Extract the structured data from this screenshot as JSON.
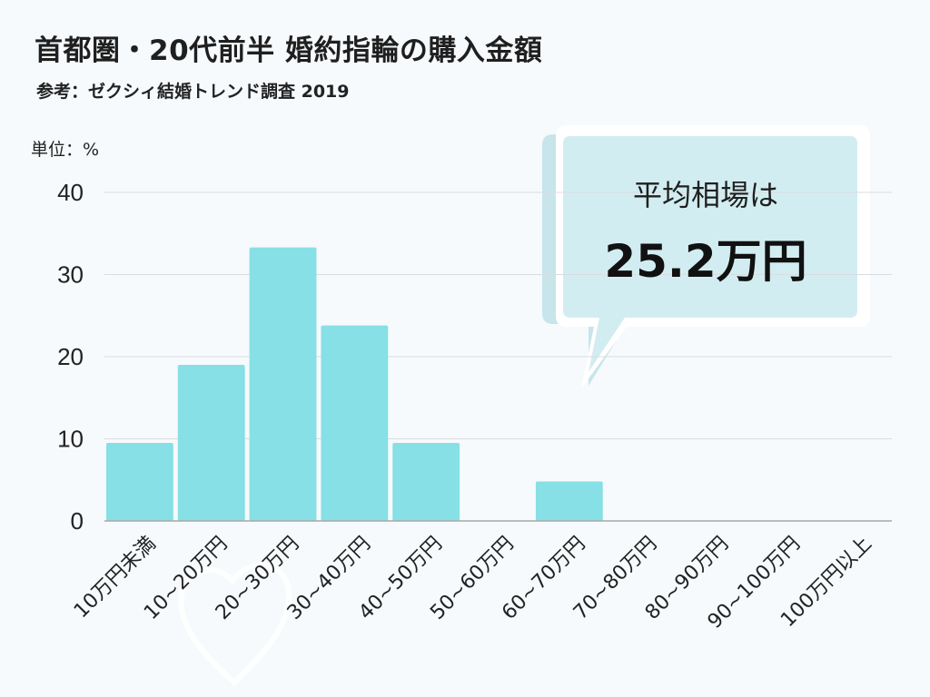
{
  "title": "首都圏・20代前半 婚約指輪の購入金額",
  "subtitle": "参考：ゼクシィ結婚トレンド調査 2019",
  "unit_label": "単位：%",
  "callout": {
    "line1": "平均相場は",
    "line2": "25.2万円"
  },
  "colors": {
    "bar": "#86e0e5",
    "callout_fill": "#d2edf1",
    "callout_shadow": "#c7e5eb",
    "background": "#f6fafc"
  },
  "chart_data": {
    "type": "bar",
    "categories": [
      "10万円未満",
      "10~20万円",
      "20~30万円",
      "30~40万円",
      "40~50万円",
      "50~60万円",
      "60~70万円",
      "70~80万円",
      "80~90万円",
      "90~100万円",
      "100万円以上"
    ],
    "values": [
      9.5,
      19,
      33.3,
      23.8,
      9.5,
      0,
      4.8,
      0,
      0,
      0,
      0
    ],
    "yticks": [
      0,
      10,
      20,
      30,
      40
    ],
    "ylim": [
      0,
      40
    ],
    "grid": true
  }
}
